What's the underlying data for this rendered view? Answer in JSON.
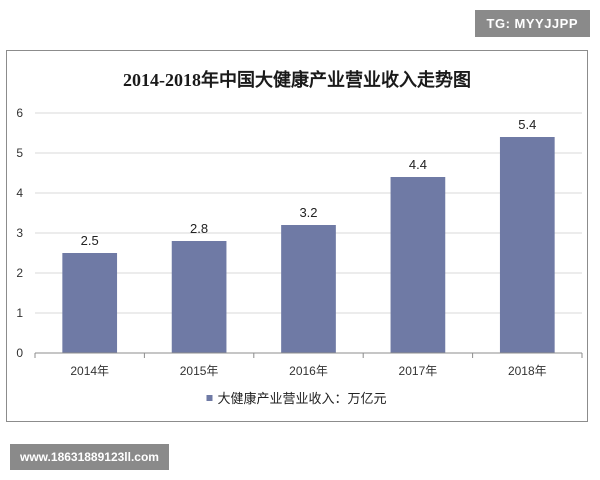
{
  "watermarks": {
    "top": "TG: MYYJJPP",
    "bottom": "www.18631889123ll.com"
  },
  "colors": {
    "bar": "#6f7aa5",
    "grid": "#d9d9d9",
    "axis": "#8c8c8c",
    "watermark_bg": "#8a8a8a"
  },
  "chart_data": {
    "type": "bar",
    "title": "2014-2018年中国大健康产业营业收入走势图",
    "categories": [
      "2014年",
      "2015年",
      "2016年",
      "2017年",
      "2018年"
    ],
    "series": [
      {
        "name": "大健康产业营业收入：万亿元",
        "values": [
          2.5,
          2.8,
          3.2,
          4.4,
          5.4
        ]
      }
    ],
    "data_labels": [
      "2.5",
      "2.8",
      "3.2",
      "4.4",
      "5.4"
    ],
    "ylim": [
      0,
      6
    ],
    "yticks": [
      0,
      1,
      2,
      3,
      4,
      5,
      6
    ],
    "grid": true,
    "legend_position": "bottom",
    "xlabel": "",
    "ylabel": ""
  }
}
